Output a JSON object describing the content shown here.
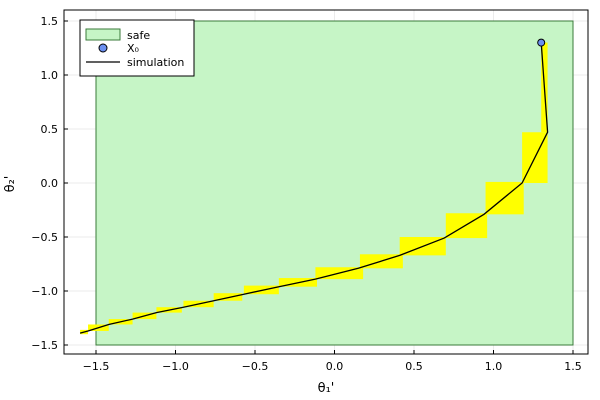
{
  "chart_data": {
    "type": "line",
    "xlabel": "θ₁'",
    "ylabel": "θ₂'",
    "xlim": [
      -1.64,
      1.58
    ],
    "ylim": [
      -1.58,
      1.58
    ],
    "x_ticks": [
      -1.5,
      -1.0,
      -0.5,
      0.0,
      0.5,
      1.0,
      1.5
    ],
    "x_tick_labels": [
      "−1.5",
      "−1.0",
      "−0.5",
      "0.0",
      "0.5",
      "1.0",
      "1.5"
    ],
    "y_ticks": [
      -1.5,
      -1.0,
      -0.5,
      0.0,
      0.5,
      1.0,
      1.5
    ],
    "y_tick_labels": [
      "−1.5",
      "−1.0",
      "−0.5",
      "0.0",
      "0.5",
      "1.0",
      "1.5"
    ],
    "grid": true,
    "legend_position": "top-left",
    "legend": [
      {
        "label": "safe",
        "kind": "patch",
        "color": "#c6f5c6"
      },
      {
        "label": "X₀",
        "kind": "marker",
        "color": "#6b8ff0"
      },
      {
        "label": "simulation",
        "kind": "line",
        "color": "#000000"
      }
    ],
    "safe_region": {
      "x": [
        -1.5,
        1.5
      ],
      "y": [
        -1.5,
        1.5
      ],
      "fill": "#c6f5c6",
      "edge": "#3a7a3a"
    },
    "reach_boxes_color": "#ffff00",
    "reach_boxes": [
      {
        "x": [
          1.3,
          1.34
        ],
        "y": [
          0.47,
          1.3
        ]
      },
      {
        "x": [
          1.18,
          1.34
        ],
        "y": [
          0.0,
          0.47
        ]
      },
      {
        "x": [
          0.95,
          1.19
        ],
        "y": [
          -0.29,
          0.01
        ]
      },
      {
        "x": [
          0.7,
          0.96
        ],
        "y": [
          -0.51,
          -0.28
        ]
      },
      {
        "x": [
          0.41,
          0.7
        ],
        "y": [
          -0.67,
          -0.5
        ]
      },
      {
        "x": [
          0.16,
          0.43
        ],
        "y": [
          -0.79,
          -0.66
        ]
      },
      {
        "x": [
          -0.12,
          0.18
        ],
        "y": [
          -0.89,
          -0.78
        ]
      },
      {
        "x": [
          -0.35,
          -0.11
        ],
        "y": [
          -0.96,
          -0.88
        ]
      },
      {
        "x": [
          -0.57,
          -0.35
        ],
        "y": [
          -1.03,
          -0.95
        ]
      },
      {
        "x": [
          -0.76,
          -0.58
        ],
        "y": [
          -1.09,
          -1.02
        ]
      },
      {
        "x": [
          -0.95,
          -0.76
        ],
        "y": [
          -1.15,
          -1.09
        ]
      },
      {
        "x": [
          -1.12,
          -0.96
        ],
        "y": [
          -1.2,
          -1.15
        ]
      },
      {
        "x": [
          -1.27,
          -1.12
        ],
        "y": [
          -1.26,
          -1.2
        ]
      },
      {
        "x": [
          -1.42,
          -1.27
        ],
        "y": [
          -1.31,
          -1.26
        ]
      },
      {
        "x": [
          -1.55,
          -1.42
        ],
        "y": [
          -1.37,
          -1.31
        ]
      },
      {
        "x": [
          -1.6,
          -1.55
        ],
        "y": [
          -1.4,
          -1.36
        ]
      }
    ],
    "initial_point": {
      "x": 1.3,
      "y": 1.3,
      "color": "#6b8ff0"
    },
    "simulation": {
      "x": [
        1.3,
        1.34,
        1.18,
        0.94,
        0.69,
        0.41,
        0.15,
        -0.12,
        -0.35,
        -0.57,
        -0.76,
        -0.95,
        -1.12,
        -1.27,
        -1.42,
        -1.55,
        -1.6
      ],
      "y": [
        1.3,
        0.47,
        0.0,
        -0.29,
        -0.51,
        -0.67,
        -0.79,
        -0.89,
        -0.96,
        -1.03,
        -1.09,
        -1.15,
        -1.2,
        -1.26,
        -1.31,
        -1.37,
        -1.39
      ]
    }
  }
}
